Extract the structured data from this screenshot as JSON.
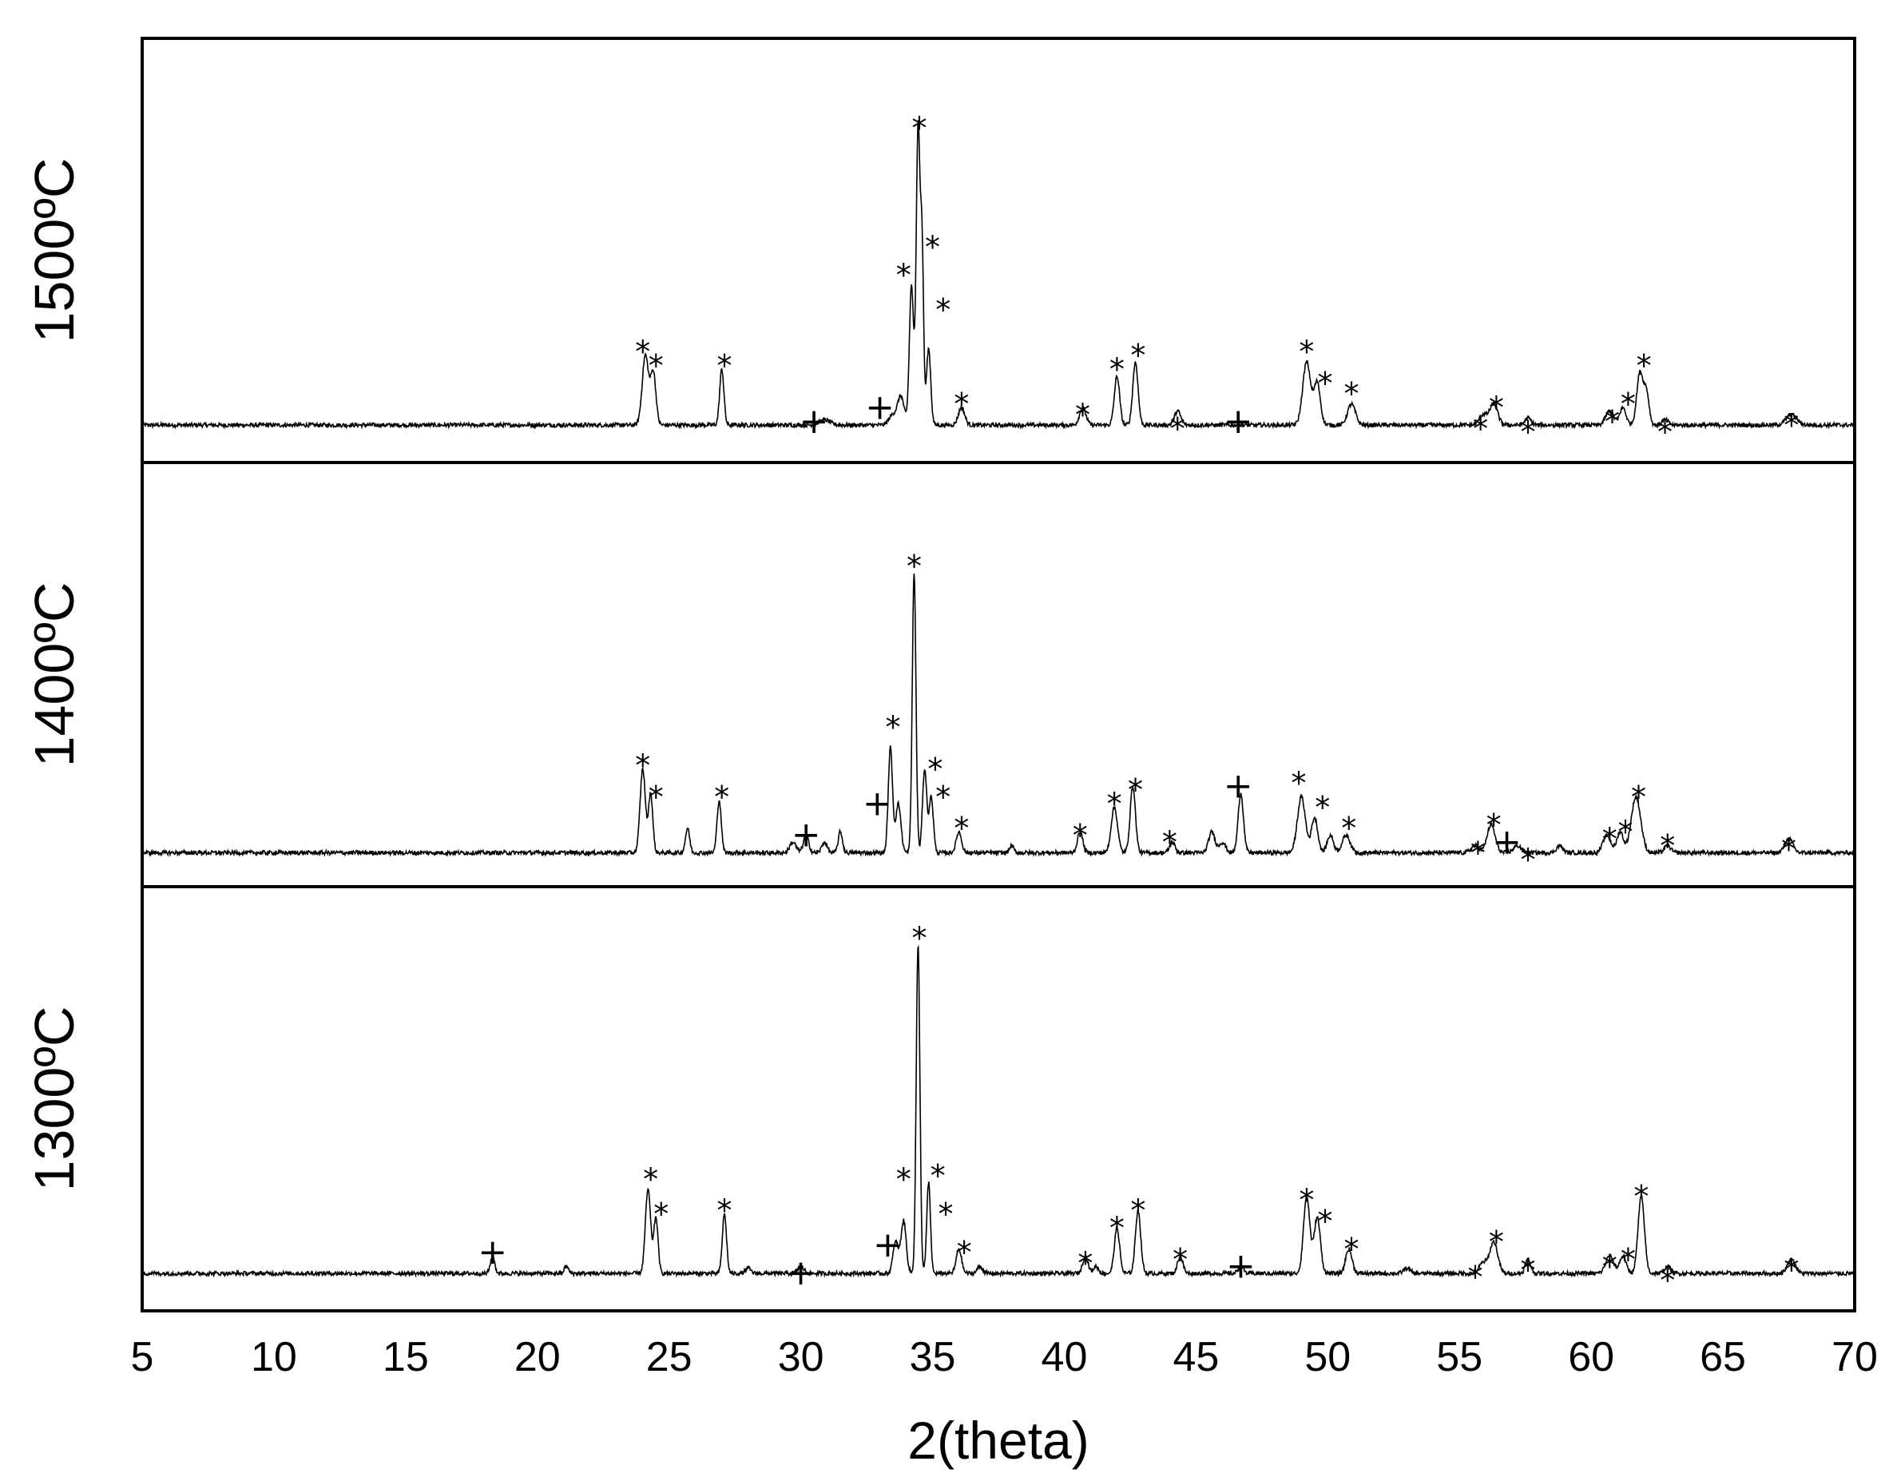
{
  "chart_data": {
    "type": "line",
    "xlabel": "2(theta)",
    "xlim": [
      5,
      70
    ],
    "xticks": [
      5,
      10,
      15,
      20,
      25,
      30,
      35,
      40,
      45,
      50,
      55,
      60,
      65,
      70
    ],
    "grid": false,
    "marker_legend": {
      "star": "*",
      "plus": "+"
    },
    "colors": {
      "line": "#000000",
      "frame": "#000000",
      "background": "#ffffff"
    },
    "panels": [
      {
        "label": "1500ºC",
        "ylim": [
          0,
          110
        ],
        "baseline": 5,
        "peaks": [
          {
            "x": 24.1,
            "h": 20,
            "w": 0.12
          },
          {
            "x": 24.4,
            "h": 15,
            "w": 0.1
          },
          {
            "x": 27.0,
            "h": 16,
            "w": 0.08
          },
          {
            "x": 30.9,
            "h": 1.5,
            "w": 0.2
          },
          {
            "x": 33.5,
            "h": 3,
            "w": 0.15
          },
          {
            "x": 33.8,
            "h": 8,
            "w": 0.12
          },
          {
            "x": 34.2,
            "h": 40,
            "w": 0.08
          },
          {
            "x": 34.45,
            "h": 85,
            "w": 0.07
          },
          {
            "x": 34.6,
            "h": 50,
            "w": 0.06
          },
          {
            "x": 34.85,
            "h": 22,
            "w": 0.08
          },
          {
            "x": 36.1,
            "h": 5,
            "w": 0.12
          },
          {
            "x": 40.7,
            "h": 5,
            "w": 0.12
          },
          {
            "x": 42.0,
            "h": 14,
            "w": 0.1
          },
          {
            "x": 42.7,
            "h": 18,
            "w": 0.1
          },
          {
            "x": 44.3,
            "h": 4,
            "w": 0.12
          },
          {
            "x": 49.2,
            "h": 18,
            "w": 0.15
          },
          {
            "x": 49.6,
            "h": 12,
            "w": 0.12
          },
          {
            "x": 50.9,
            "h": 6,
            "w": 0.15
          },
          {
            "x": 55.9,
            "h": 3,
            "w": 0.15
          },
          {
            "x": 56.3,
            "h": 6,
            "w": 0.15
          },
          {
            "x": 57.6,
            "h": 2,
            "w": 0.12
          },
          {
            "x": 60.7,
            "h": 4,
            "w": 0.15
          },
          {
            "x": 61.2,
            "h": 5,
            "w": 0.12
          },
          {
            "x": 61.85,
            "h": 15,
            "w": 0.12
          },
          {
            "x": 62.1,
            "h": 9,
            "w": 0.1
          },
          {
            "x": 62.8,
            "h": 1.5,
            "w": 0.12
          },
          {
            "x": 67.6,
            "h": 3,
            "w": 0.2
          }
        ],
        "marks": [
          {
            "x": 34.5,
            "y": 92,
            "sym": "*"
          },
          {
            "x": 33.9,
            "y": 50,
            "sym": "*"
          },
          {
            "x": 35.0,
            "y": 58,
            "sym": "*"
          },
          {
            "x": 35.4,
            "y": 40,
            "sym": "*"
          },
          {
            "x": 24.0,
            "y": 28,
            "sym": "*"
          },
          {
            "x": 24.5,
            "y": 24,
            "sym": "*"
          },
          {
            "x": 27.1,
            "y": 24,
            "sym": "*"
          },
          {
            "x": 30.5,
            "y": 6,
            "sym": "+"
          },
          {
            "x": 33.0,
            "y": 10,
            "sym": "+"
          },
          {
            "x": 36.1,
            "y": 13,
            "sym": "*"
          },
          {
            "x": 40.7,
            "y": 10,
            "sym": "*"
          },
          {
            "x": 42.0,
            "y": 23,
            "sym": "*"
          },
          {
            "x": 42.8,
            "y": 27,
            "sym": "*"
          },
          {
            "x": 44.3,
            "y": 6,
            "sym": "*"
          },
          {
            "x": 46.6,
            "y": 6,
            "sym": "+"
          },
          {
            "x": 49.2,
            "y": 28,
            "sym": "*"
          },
          {
            "x": 49.9,
            "y": 19,
            "sym": "*"
          },
          {
            "x": 50.9,
            "y": 16,
            "sym": "*"
          },
          {
            "x": 55.8,
            "y": 6,
            "sym": "*"
          },
          {
            "x": 56.4,
            "y": 12,
            "sym": "*"
          },
          {
            "x": 57.6,
            "y": 5,
            "sym": "*"
          },
          {
            "x": 60.8,
            "y": 8,
            "sym": "*"
          },
          {
            "x": 61.4,
            "y": 13,
            "sym": "*"
          },
          {
            "x": 62.0,
            "y": 24,
            "sym": "*"
          },
          {
            "x": 62.8,
            "y": 5,
            "sym": "*"
          },
          {
            "x": 67.6,
            "y": 7,
            "sym": "*"
          }
        ]
      },
      {
        "label": "1400ºC",
        "ylim": [
          0,
          110
        ],
        "baseline": 4,
        "peaks": [
          {
            "x": 24.0,
            "h": 24,
            "w": 0.1
          },
          {
            "x": 24.3,
            "h": 17,
            "w": 0.08
          },
          {
            "x": 25.7,
            "h": 7,
            "w": 0.08
          },
          {
            "x": 26.9,
            "h": 15,
            "w": 0.08
          },
          {
            "x": 29.7,
            "h": 3,
            "w": 0.12
          },
          {
            "x": 30.2,
            "h": 5,
            "w": 0.1
          },
          {
            "x": 30.9,
            "h": 3,
            "w": 0.1
          },
          {
            "x": 31.5,
            "h": 6,
            "w": 0.08
          },
          {
            "x": 33.4,
            "h": 30,
            "w": 0.08
          },
          {
            "x": 33.7,
            "h": 14,
            "w": 0.1
          },
          {
            "x": 34.3,
            "h": 80,
            "w": 0.07
          },
          {
            "x": 34.7,
            "h": 24,
            "w": 0.08
          },
          {
            "x": 34.95,
            "h": 16,
            "w": 0.08
          },
          {
            "x": 36.0,
            "h": 6,
            "w": 0.1
          },
          {
            "x": 38.0,
            "h": 2,
            "w": 0.08
          },
          {
            "x": 40.6,
            "h": 6,
            "w": 0.1
          },
          {
            "x": 41.9,
            "h": 13,
            "w": 0.12
          },
          {
            "x": 42.6,
            "h": 19,
            "w": 0.1
          },
          {
            "x": 44.1,
            "h": 3,
            "w": 0.1
          },
          {
            "x": 45.6,
            "h": 6,
            "w": 0.12
          },
          {
            "x": 46.0,
            "h": 3,
            "w": 0.12
          },
          {
            "x": 46.7,
            "h": 17,
            "w": 0.1
          },
          {
            "x": 49.0,
            "h": 16,
            "w": 0.15
          },
          {
            "x": 49.5,
            "h": 10,
            "w": 0.12
          },
          {
            "x": 50.1,
            "h": 5,
            "w": 0.12
          },
          {
            "x": 50.7,
            "h": 5,
            "w": 0.15
          },
          {
            "x": 55.6,
            "h": 2,
            "w": 0.15
          },
          {
            "x": 56.2,
            "h": 8,
            "w": 0.15
          },
          {
            "x": 57.2,
            "h": 2,
            "w": 0.15
          },
          {
            "x": 58.8,
            "h": 2,
            "w": 0.12
          },
          {
            "x": 60.6,
            "h": 5,
            "w": 0.15
          },
          {
            "x": 61.1,
            "h": 6,
            "w": 0.12
          },
          {
            "x": 61.7,
            "h": 16,
            "w": 0.18
          },
          {
            "x": 62.9,
            "h": 2,
            "w": 0.12
          },
          {
            "x": 67.5,
            "h": 4,
            "w": 0.15
          }
        ],
        "marks": [
          {
            "x": 34.3,
            "y": 88,
            "sym": "*"
          },
          {
            "x": 33.5,
            "y": 42,
            "sym": "*"
          },
          {
            "x": 35.1,
            "y": 30,
            "sym": "*"
          },
          {
            "x": 35.4,
            "y": 22,
            "sym": "*"
          },
          {
            "x": 24.0,
            "y": 31,
            "sym": "*"
          },
          {
            "x": 24.5,
            "y": 22,
            "sym": "*"
          },
          {
            "x": 27.0,
            "y": 22,
            "sym": "*"
          },
          {
            "x": 30.2,
            "y": 9,
            "sym": "+"
          },
          {
            "x": 32.9,
            "y": 18,
            "sym": "+"
          },
          {
            "x": 36.1,
            "y": 13,
            "sym": "*"
          },
          {
            "x": 40.6,
            "y": 11,
            "sym": "*"
          },
          {
            "x": 41.9,
            "y": 20,
            "sym": "*"
          },
          {
            "x": 42.7,
            "y": 24,
            "sym": "*"
          },
          {
            "x": 44.0,
            "y": 9,
            "sym": "*"
          },
          {
            "x": 46.6,
            "y": 23,
            "sym": "+"
          },
          {
            "x": 48.9,
            "y": 26,
            "sym": "*"
          },
          {
            "x": 49.8,
            "y": 19,
            "sym": "*"
          },
          {
            "x": 50.8,
            "y": 13,
            "sym": "*"
          },
          {
            "x": 55.7,
            "y": 6,
            "sym": "*"
          },
          {
            "x": 56.3,
            "y": 14,
            "sym": "*"
          },
          {
            "x": 56.8,
            "y": 7,
            "sym": "+"
          },
          {
            "x": 57.6,
            "y": 4,
            "sym": "*"
          },
          {
            "x": 60.7,
            "y": 10,
            "sym": "*"
          },
          {
            "x": 61.3,
            "y": 12,
            "sym": "*"
          },
          {
            "x": 61.8,
            "y": 22,
            "sym": "*"
          },
          {
            "x": 62.9,
            "y": 8,
            "sym": "*"
          },
          {
            "x": 67.5,
            "y": 7,
            "sym": "*"
          }
        ]
      },
      {
        "label": "1300ºC",
        "ylim": [
          0,
          110
        ],
        "baseline": 5,
        "peaks": [
          {
            "x": 18.3,
            "h": 5,
            "w": 0.08
          },
          {
            "x": 21.1,
            "h": 2,
            "w": 0.08
          },
          {
            "x": 24.2,
            "h": 24,
            "w": 0.1
          },
          {
            "x": 24.5,
            "h": 16,
            "w": 0.08
          },
          {
            "x": 27.1,
            "h": 17,
            "w": 0.08
          },
          {
            "x": 28.0,
            "h": 1.5,
            "w": 0.1
          },
          {
            "x": 30.0,
            "h": 2,
            "w": 0.12
          },
          {
            "x": 33.6,
            "h": 9,
            "w": 0.1
          },
          {
            "x": 33.9,
            "h": 15,
            "w": 0.1
          },
          {
            "x": 34.45,
            "h": 94,
            "w": 0.07
          },
          {
            "x": 34.85,
            "h": 26,
            "w": 0.07
          },
          {
            "x": 36.0,
            "h": 7,
            "w": 0.1
          },
          {
            "x": 36.8,
            "h": 2,
            "w": 0.1
          },
          {
            "x": 40.8,
            "h": 5,
            "w": 0.1
          },
          {
            "x": 41.2,
            "h": 2,
            "w": 0.1
          },
          {
            "x": 42.0,
            "h": 13,
            "w": 0.1
          },
          {
            "x": 42.8,
            "h": 18,
            "w": 0.1
          },
          {
            "x": 44.4,
            "h": 5,
            "w": 0.1
          },
          {
            "x": 46.7,
            "h": 2,
            "w": 0.1
          },
          {
            "x": 49.2,
            "h": 22,
            "w": 0.12
          },
          {
            "x": 49.6,
            "h": 16,
            "w": 0.12
          },
          {
            "x": 50.8,
            "h": 7,
            "w": 0.12
          },
          {
            "x": 53.0,
            "h": 1.5,
            "w": 0.12
          },
          {
            "x": 55.9,
            "h": 3,
            "w": 0.15
          },
          {
            "x": 56.3,
            "h": 9,
            "w": 0.15
          },
          {
            "x": 57.6,
            "h": 4,
            "w": 0.1
          },
          {
            "x": 60.7,
            "h": 5,
            "w": 0.15
          },
          {
            "x": 61.2,
            "h": 5,
            "w": 0.12
          },
          {
            "x": 61.9,
            "h": 22,
            "w": 0.12
          },
          {
            "x": 62.9,
            "h": 2,
            "w": 0.12
          },
          {
            "x": 67.6,
            "h": 4,
            "w": 0.15
          }
        ],
        "marks": [
          {
            "x": 34.5,
            "y": 103,
            "sym": "*"
          },
          {
            "x": 33.9,
            "y": 34,
            "sym": "*"
          },
          {
            "x": 35.2,
            "y": 35,
            "sym": "*"
          },
          {
            "x": 35.5,
            "y": 24,
            "sym": "*"
          },
          {
            "x": 24.3,
            "y": 34,
            "sym": "*"
          },
          {
            "x": 24.7,
            "y": 24,
            "sym": "*"
          },
          {
            "x": 27.1,
            "y": 25,
            "sym": "*"
          },
          {
            "x": 18.3,
            "y": 11,
            "sym": "+"
          },
          {
            "x": 30.0,
            "y": 5,
            "sym": "+"
          },
          {
            "x": 33.3,
            "y": 13,
            "sym": "+"
          },
          {
            "x": 36.2,
            "y": 13,
            "sym": "*"
          },
          {
            "x": 40.8,
            "y": 10,
            "sym": "*"
          },
          {
            "x": 42.0,
            "y": 20,
            "sym": "*"
          },
          {
            "x": 42.8,
            "y": 25,
            "sym": "*"
          },
          {
            "x": 44.4,
            "y": 11,
            "sym": "*"
          },
          {
            "x": 46.7,
            "y": 7,
            "sym": "+"
          },
          {
            "x": 49.2,
            "y": 28,
            "sym": "*"
          },
          {
            "x": 49.9,
            "y": 22,
            "sym": "*"
          },
          {
            "x": 50.9,
            "y": 14,
            "sym": "*"
          },
          {
            "x": 55.6,
            "y": 6,
            "sym": "*"
          },
          {
            "x": 56.4,
            "y": 16,
            "sym": "*"
          },
          {
            "x": 57.6,
            "y": 8,
            "sym": "*"
          },
          {
            "x": 60.7,
            "y": 9,
            "sym": "*"
          },
          {
            "x": 61.4,
            "y": 11,
            "sym": "*"
          },
          {
            "x": 61.9,
            "y": 29,
            "sym": "*"
          },
          {
            "x": 62.9,
            "y": 5,
            "sym": "*"
          },
          {
            "x": 67.6,
            "y": 8,
            "sym": "*"
          }
        ]
      }
    ]
  }
}
